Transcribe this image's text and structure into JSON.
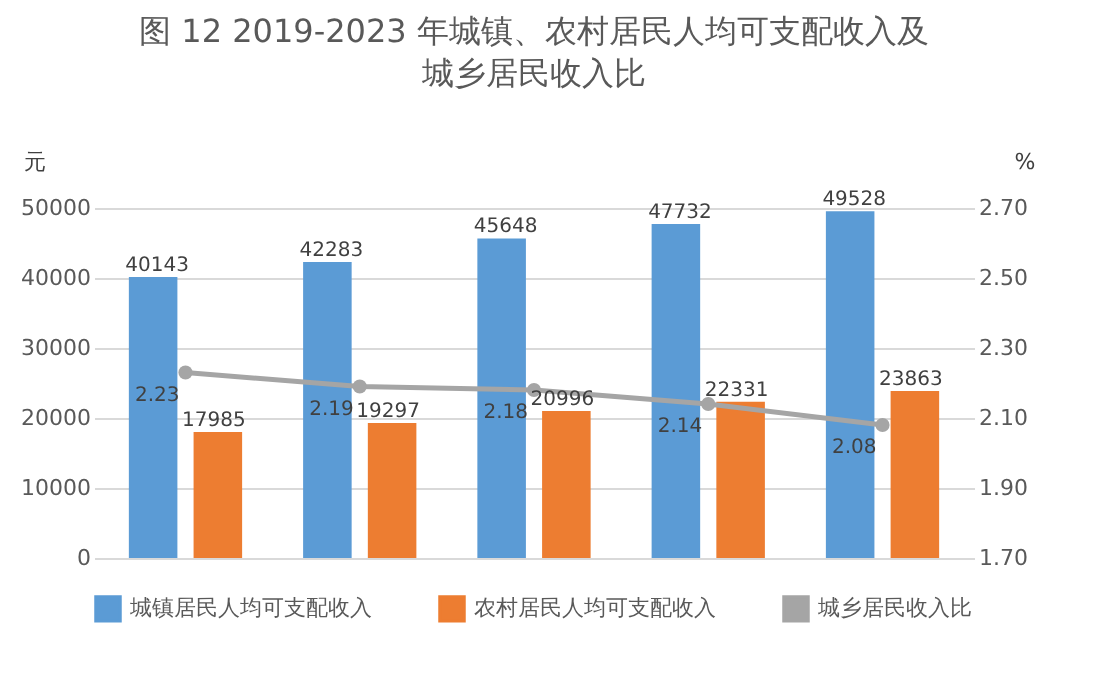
{
  "chart_data": {
    "type": "bar",
    "title": "图 12 2019-2023 年城镇、农村居民人均可支配收入及城乡居民收入比",
    "ylabel": "元",
    "y2label": "%",
    "categories": [
      null,
      null,
      null,
      null,
      null
    ],
    "series": [
      {
        "name": "城镇居民人均可支配收入",
        "color": "#5b9bd5",
        "values": [
          40143,
          42283,
          45648,
          47732,
          49528
        ]
      },
      {
        "name": "农村居民人均可支配收入",
        "color": "#ed7d31",
        "values": [
          17985,
          19297,
          20996,
          22331,
          23863
        ]
      },
      {
        "name": "城乡居民收入比",
        "type": "line",
        "axis": "y2",
        "color": "#a5a5a5",
        "marker": "circle",
        "values": [
          2.23,
          2.19,
          2.18,
          2.14,
          2.08
        ]
      }
    ],
    "ylim": [
      0,
      50000
    ],
    "yticks": [
      0,
      10000,
      20000,
      30000,
      40000,
      50000
    ],
    "y2lim": [
      1.7,
      2.7
    ],
    "y2ticks": [
      {
        "value": 1.7,
        "label": "1.70"
      },
      {
        "value": 1.9,
        "label": "1.90"
      },
      {
        "value": 2.1,
        "label": "2.10"
      },
      {
        "value": 2.3,
        "label": "2.30"
      },
      {
        "value": 2.5,
        "label": "2.50"
      },
      {
        "value": 2.7,
        "label": "2.70"
      }
    ],
    "tick_labels": "y",
    "grid": "y",
    "legend": "bottom",
    "data_labels": true
  }
}
